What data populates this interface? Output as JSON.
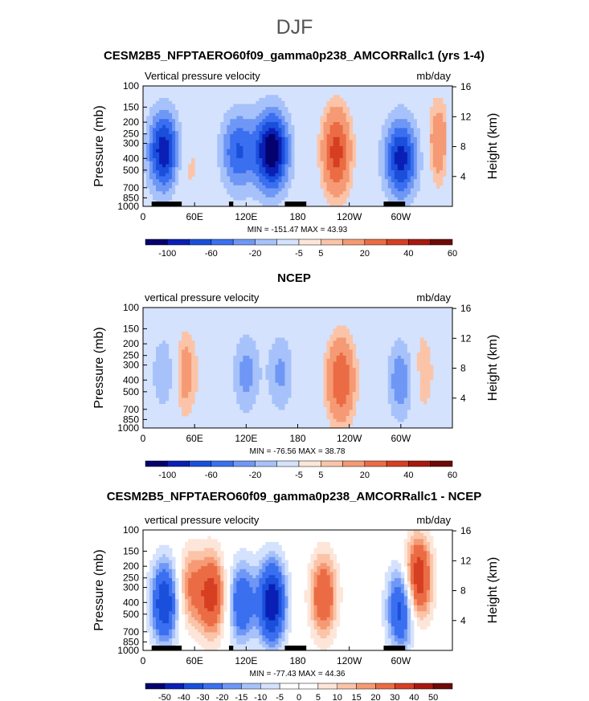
{
  "figure_title": "DJF",
  "colors": {
    "model_palette": [
      "#04026e",
      "#0a1fb5",
      "#1a4fdb",
      "#3a6ff0",
      "#6f97f5",
      "#a7c2fa",
      "#d4e2fd",
      "#fde6d9",
      "#fbc4a8",
      "#f59a74",
      "#eb6c44",
      "#d63f22",
      "#a8190f",
      "#6e0a07"
    ],
    "diff_palette": [
      "#04026e",
      "#0a1fb5",
      "#1a4fdb",
      "#3a6ff0",
      "#6f97f5",
      "#a7c2fa",
      "#d4e2fd",
      "#ffffff",
      "#ffffff",
      "#fde6d9",
      "#fbc4a8",
      "#f59a74",
      "#eb6c44",
      "#d63f22",
      "#a8190f",
      "#6e0a07"
    ],
    "terrain": "#000000"
  },
  "chart_data": [
    {
      "type": "heatmap",
      "title": "CESM2B5_NFPTAERO60f09_gamma0p238_AMCORRallc1 (yrs 1-4)",
      "left_label": "Vertical pressure velocity",
      "right_label": "mb/day",
      "ylabel": "Pressure (mb)",
      "ylabel_right": "Height (km)",
      "pressure_ticks": [
        "100",
        "150",
        "200",
        "250",
        "300",
        "400",
        "500",
        "700",
        "850",
        "1000"
      ],
      "height_ticks": [
        "16",
        "12",
        "8",
        "4"
      ],
      "lon_ticks": [
        "0",
        "60E",
        "120E",
        "180",
        "120W",
        "60W"
      ],
      "min_max": "MIN = -151.47  MAX =  43.93",
      "colorbar_labels": [
        "-100",
        "-60",
        "-20",
        "-5",
        "5",
        "20",
        "40",
        "60"
      ],
      "xlim": [
        0,
        360
      ],
      "ylim": [
        1000,
        100
      ],
      "terrain_lon": [
        [
          10,
          45
        ],
        [
          100,
          105
        ],
        [
          165,
          190
        ],
        [
          280,
          305
        ]
      ],
      "field_features": [
        {
          "lon": 25,
          "p": 350,
          "value": -120
        },
        {
          "lon": 45,
          "p": 400,
          "value": 25
        },
        {
          "lon": 110,
          "p": 350,
          "value": -80
        },
        {
          "lon": 150,
          "p": 350,
          "value": -140
        },
        {
          "lon": 225,
          "p": 350,
          "value": 35
        },
        {
          "lon": 300,
          "p": 400,
          "value": -110
        },
        {
          "lon": 345,
          "p": 300,
          "value": 20
        }
      ]
    },
    {
      "type": "heatmap",
      "title": "NCEP",
      "left_label": "vertical pressure velocity",
      "right_label": "mb/day",
      "ylabel": "Pressure (mb)",
      "ylabel_right": "Height (km)",
      "pressure_ticks": [
        "100",
        "150",
        "200",
        "250",
        "300",
        "400",
        "500",
        "700",
        "850",
        "1000"
      ],
      "height_ticks": [
        "16",
        "12",
        "8",
        "4"
      ],
      "lon_ticks": [
        "0",
        "60E",
        "120E",
        "180",
        "120W",
        "60W"
      ],
      "min_max": "MIN = -76.56  MAX =  38.78",
      "colorbar_labels": [
        "-100",
        "-60",
        "-20",
        "-5",
        "5",
        "20",
        "40",
        "60"
      ],
      "xlim": [
        0,
        360
      ],
      "ylim": [
        1000,
        100
      ],
      "terrain_lon": [],
      "field_features": [
        {
          "lon": 25,
          "p": 350,
          "value": -40
        },
        {
          "lon": 45,
          "p": 350,
          "value": 20
        },
        {
          "lon": 120,
          "p": 350,
          "value": -50
        },
        {
          "lon": 160,
          "p": 350,
          "value": -45
        },
        {
          "lon": 230,
          "p": 400,
          "value": 30
        },
        {
          "lon": 300,
          "p": 400,
          "value": -60
        },
        {
          "lon": 320,
          "p": 350,
          "value": 15
        }
      ]
    },
    {
      "type": "heatmap",
      "title": "CESM2B5_NFPTAERO60f09_gamma0p238_AMCORRallc1 - NCEP",
      "left_label": "vertical pressure velocity",
      "right_label": "mb/day",
      "ylabel": "Pressure (mb)",
      "ylabel_right": "Height (km)",
      "pressure_ticks": [
        "100",
        "150",
        "200",
        "250",
        "300",
        "400",
        "500",
        "700",
        "850",
        "1000"
      ],
      "height_ticks": [
        "16",
        "12",
        "8",
        "4"
      ],
      "lon_ticks": [
        "0",
        "60E",
        "120E",
        "180",
        "120W",
        "60W"
      ],
      "min_max": "MIN = -77.43  MAX =  44.36",
      "colorbar_labels": [
        "-50",
        "-40",
        "-30",
        "-20",
        "-15",
        "-10",
        "-5",
        "0",
        "5",
        "10",
        "15",
        "20",
        "30",
        "40",
        "50"
      ],
      "xlim": [
        0,
        360
      ],
      "ylim": [
        1000,
        100
      ],
      "terrain_lon": [
        [
          10,
          45
        ],
        [
          100,
          105
        ],
        [
          165,
          190
        ],
        [
          280,
          305
        ]
      ],
      "field_features": [
        {
          "lon": 25,
          "p": 400,
          "value": -40
        },
        {
          "lon": 55,
          "p": 300,
          "value": 20
        },
        {
          "lon": 80,
          "p": 350,
          "value": 35
        },
        {
          "lon": 115,
          "p": 400,
          "value": -30
        },
        {
          "lon": 150,
          "p": 400,
          "value": -50
        },
        {
          "lon": 210,
          "p": 350,
          "value": 30
        },
        {
          "lon": 300,
          "p": 450,
          "value": -35
        },
        {
          "lon": 320,
          "p": 250,
          "value": 40
        }
      ]
    }
  ]
}
